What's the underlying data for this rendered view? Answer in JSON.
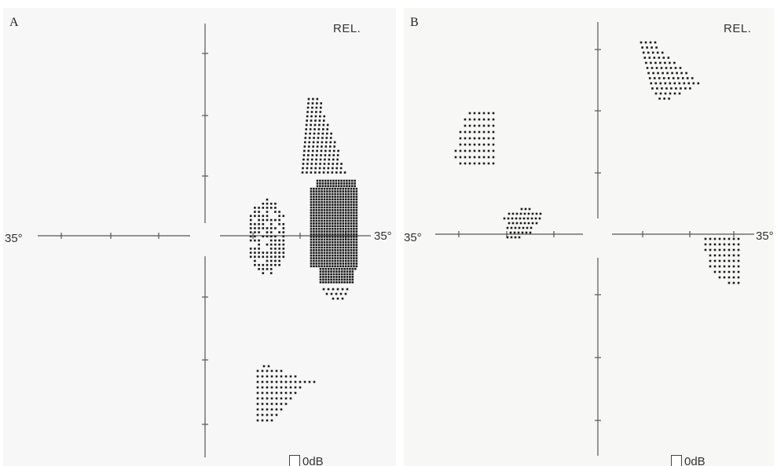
{
  "panels": [
    {
      "id": "A",
      "label": "A",
      "rel_label": "REL.",
      "left_degree_label": "35°",
      "right_degree_label": "35°",
      "legend_label": "0dB"
    },
    {
      "id": "B",
      "label": "B",
      "rel_label": "REL.",
      "left_degree_label": "35°",
      "right_degree_label": "35°",
      "legend_label": "0dB"
    }
  ]
}
